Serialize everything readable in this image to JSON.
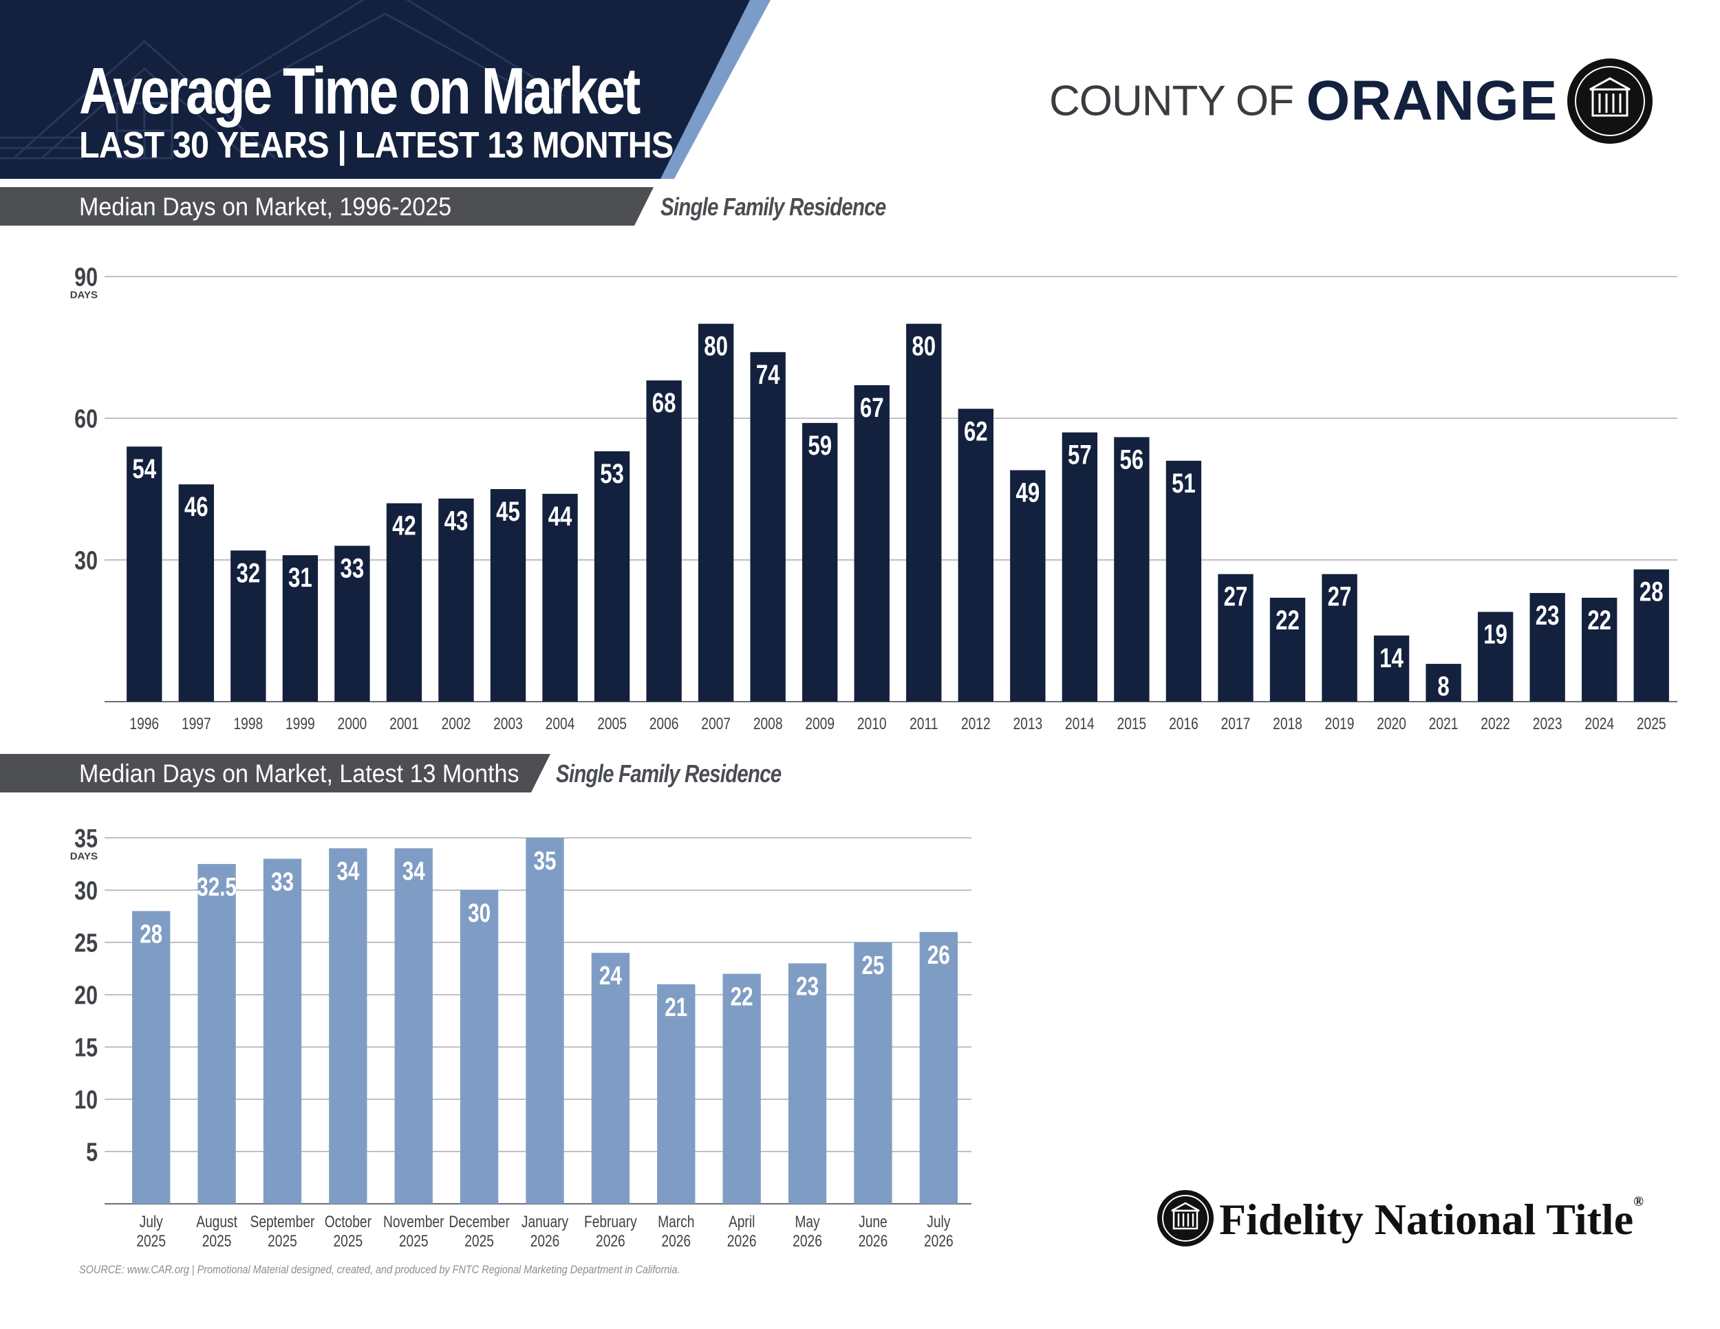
{
  "header": {
    "title": "Average Time on Market",
    "subtitle": "LAST 30 YEARS | LATEST 13 MONTHS"
  },
  "county_logo": {
    "prefix": "COUNTY OF",
    "name": "ORANGE",
    "seal_icon": "building-seal-icon"
  },
  "colors": {
    "navy": "#13213e",
    "steel_blue": "#7f9dc4",
    "bar_gray": "#4d4f53",
    "light_blue_stripe": "#7b9cc8"
  },
  "sections": [
    {
      "title": "Median Days on Market, 1996-2025",
      "tag": "Single Family Residence"
    },
    {
      "title": "Median Days on Market, Latest 13 Months",
      "tag": "Single Family Residence"
    }
  ],
  "chart_data": [
    {
      "type": "bar",
      "title": "Median Days on Market, 1996-2025",
      "ylabel": "DAYS",
      "ylim": [
        0,
        90
      ],
      "yticks": [
        30,
        60,
        90
      ],
      "grid": true,
      "color": "#13213e",
      "categories": [
        "1996",
        "1997",
        "1998",
        "1999",
        "2000",
        "2001",
        "2002",
        "2003",
        "2004",
        "2005",
        "2006",
        "2007",
        "2008",
        "2009",
        "2010",
        "2011",
        "2012",
        "2013",
        "2014",
        "2015",
        "2016",
        "2017",
        "2018",
        "2019",
        "2020",
        "2021",
        "2022",
        "2023",
        "2024",
        "2025"
      ],
      "values": [
        54,
        46,
        32,
        31,
        33,
        42,
        43,
        45,
        44,
        53,
        68,
        80,
        74,
        59,
        67,
        80,
        62,
        49,
        57,
        56,
        51,
        27,
        22,
        27,
        14,
        8,
        19,
        23,
        22,
        28
      ],
      "labels": [
        "54",
        "46",
        "32",
        "31",
        "33",
        "42",
        "43",
        "45",
        "44",
        "53",
        "68",
        "80",
        "74",
        "59",
        "67",
        "80",
        "62",
        "49",
        "57",
        "56",
        "51",
        "27",
        "22",
        "27",
        "14",
        "8",
        "19",
        "23",
        "22",
        "28"
      ]
    },
    {
      "type": "bar",
      "title": "Median Days on Market, Latest 13 Months",
      "ylabel": "DAYS",
      "ylim": [
        0,
        35
      ],
      "yticks": [
        5,
        10,
        15,
        20,
        25,
        30,
        35
      ],
      "grid": true,
      "color": "#7f9dc4",
      "categories": [
        [
          "July",
          "2025"
        ],
        [
          "August",
          "2025"
        ],
        [
          "September",
          "2025"
        ],
        [
          "October",
          "2025"
        ],
        [
          "November",
          "2025"
        ],
        [
          "December",
          "2025"
        ],
        [
          "January",
          "2026"
        ],
        [
          "February",
          "2026"
        ],
        [
          "March",
          "2026"
        ],
        [
          "April",
          "2026"
        ],
        [
          "May",
          "2026"
        ],
        [
          "June",
          "2026"
        ],
        [
          "July",
          "2026"
        ]
      ],
      "values": [
        28,
        32.5,
        33,
        34,
        34,
        30,
        35,
        24,
        21,
        22,
        23,
        25,
        26
      ],
      "labels": [
        "28",
        "32.5",
        "33",
        "34",
        "34",
        "30",
        "35",
        "24",
        "21",
        "22",
        "23",
        "25",
        "26"
      ]
    }
  ],
  "fidelity_logo": {
    "name": "Fidelity National Title",
    "reg": "®",
    "seal_icon": "building-seal-icon"
  },
  "footer": {
    "source": "SOURCE: www.CAR.org | Promotional Material designed, created, and produced by FNTC Regional Marketing Department in California."
  }
}
